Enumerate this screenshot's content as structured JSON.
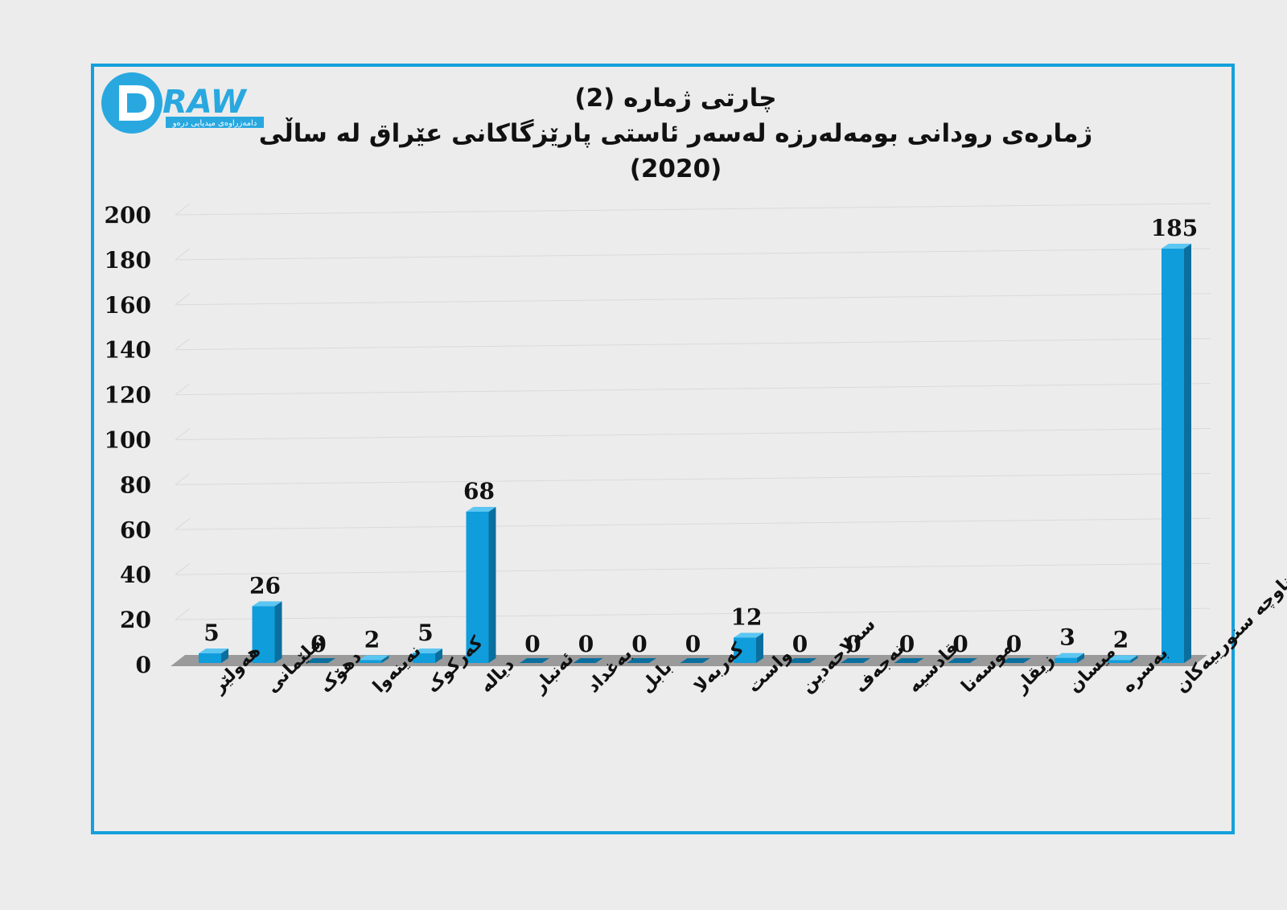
{
  "logo": {
    "text": "RAW",
    "subtitle": "دامەزراوەی میدیایی درەو",
    "brand_color": "#29a8e0"
  },
  "chart_data": {
    "type": "bar",
    "title": "چارتی ژمارە (2)",
    "subtitle": "ژمارەی رودانی بومەلەرزە لەسەر ئاستی پارێزگاکانی عێراق لە ساڵی (2020)",
    "xlabel": "",
    "ylabel": "",
    "ylim": [
      0,
      200
    ],
    "yticks": [
      0,
      20,
      40,
      60,
      80,
      100,
      120,
      140,
      160,
      180,
      200
    ],
    "grid": true,
    "bar_color": "#0f9ddc",
    "categories": [
      "هەولێر",
      "سلێمانی",
      "دهۆک",
      "نەینەوا",
      "کەرکوک",
      "دیالە",
      "ئەنبار",
      "بەغداد",
      "بابل",
      "کەربەلا",
      "واست",
      "سەلاحەدین",
      "نەجەف",
      "قادسیە",
      "موسەنا",
      "زیقار",
      "میسان",
      "بەسرە",
      "ناوچە سنورییەکان"
    ],
    "values": [
      5,
      26,
      0,
      2,
      5,
      68,
      0,
      0,
      0,
      0,
      12,
      0,
      0,
      0,
      0,
      0,
      3,
      2,
      185
    ]
  }
}
